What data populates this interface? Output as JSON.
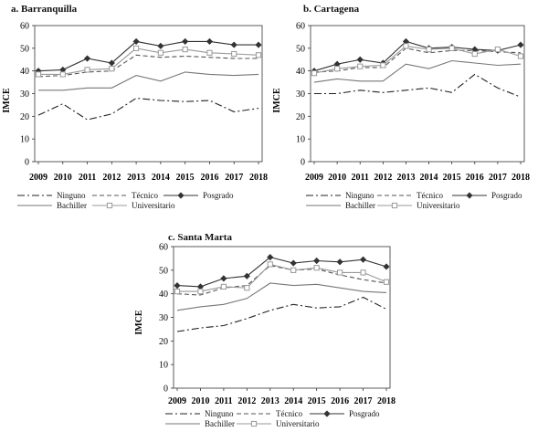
{
  "chart_data": [
    {
      "type": "line",
      "panel_title": "a. Barranquilla",
      "ylabel": "IMCE",
      "ylim": [
        0,
        60
      ],
      "yticks": [
        0,
        10,
        20,
        30,
        40,
        50,
        60
      ],
      "x": [
        2009,
        2010,
        2011,
        2012,
        2013,
        2014,
        2015,
        2016,
        2017,
        2018
      ],
      "series": [
        {
          "name": "Ninguno",
          "values": [
            20.5,
            25.5,
            18.5,
            21,
            28,
            27,
            26.5,
            27,
            22,
            23.5
          ]
        },
        {
          "name": "Técnico",
          "values": [
            37.5,
            38,
            39.5,
            40,
            47,
            46,
            46.5,
            46,
            45.5,
            45.5
          ]
        },
        {
          "name": "Posgrado",
          "values": [
            40,
            40.5,
            45.5,
            43.5,
            53,
            51,
            53,
            53,
            51.5,
            51.5
          ]
        },
        {
          "name": "Bachiller",
          "values": [
            31.5,
            31.5,
            32.5,
            32.5,
            38,
            35.5,
            39.5,
            38.5,
            38,
            38.5
          ]
        },
        {
          "name": "Universitario",
          "values": [
            38.5,
            38.5,
            40.5,
            41,
            50,
            48,
            49.5,
            48,
            47.5,
            47
          ]
        }
      ]
    },
    {
      "type": "line",
      "panel_title": "b. Cartagena",
      "ylabel": "IMCE",
      "ylim": [
        0,
        60
      ],
      "yticks": [
        0,
        10,
        20,
        30,
        40,
        50,
        60
      ],
      "x": [
        2009,
        2010,
        2011,
        2012,
        2013,
        2014,
        2015,
        2016,
        2017,
        2018
      ],
      "series": [
        {
          "name": "Ninguno",
          "values": [
            30,
            30,
            31.5,
            30.5,
            31.5,
            32.5,
            30.5,
            38.5,
            32.5,
            28.5
          ]
        },
        {
          "name": "Técnico",
          "values": [
            39.5,
            40,
            41.5,
            41.5,
            50,
            48,
            49,
            49,
            48.5,
            48
          ]
        },
        {
          "name": "Posgrado",
          "values": [
            40,
            43,
            45,
            43.5,
            53,
            50,
            50.5,
            49.5,
            49,
            51.5
          ]
        },
        {
          "name": "Bachiller",
          "values": [
            35,
            36.5,
            35.5,
            35.5,
            43,
            41,
            44.5,
            43.5,
            42.5,
            43
          ]
        },
        {
          "name": "Universitario",
          "values": [
            39,
            41,
            42,
            42.5,
            51,
            49.5,
            50,
            47.5,
            49.5,
            46.5
          ]
        }
      ]
    },
    {
      "type": "line",
      "panel_title": "c. Santa Marta",
      "ylabel": "IMCE",
      "ylim": [
        0,
        60
      ],
      "yticks": [
        0,
        10,
        20,
        30,
        40,
        50,
        60
      ],
      "x": [
        2009,
        2010,
        2011,
        2012,
        2013,
        2014,
        2015,
        2016,
        2017,
        2018
      ],
      "series": [
        {
          "name": "Ninguno",
          "values": [
            24,
            25.5,
            26.5,
            29.5,
            33,
            35.5,
            34,
            34.5,
            38.5,
            33.5
          ]
        },
        {
          "name": "Técnico",
          "values": [
            40,
            39.5,
            42.5,
            43.5,
            52,
            50,
            50.5,
            48,
            46,
            44.5
          ]
        },
        {
          "name": "Posgrado",
          "values": [
            43.5,
            43,
            46.5,
            47.5,
            55.5,
            53,
            54,
            53.5,
            54.5,
            51.5
          ]
        },
        {
          "name": "Bachiller",
          "values": [
            33,
            34.5,
            35.5,
            38,
            44.5,
            43.5,
            44,
            42.5,
            41,
            40.5
          ]
        },
        {
          "name": "Universitario",
          "values": [
            41,
            41,
            43,
            42.5,
            52.5,
            50,
            51,
            49,
            49,
            45
          ]
        }
      ]
    }
  ],
  "styles": {
    "Ninguno": {
      "color": "#222222",
      "dash": "8,3,2,3",
      "marker": "none"
    },
    "Técnico": {
      "color": "#555555",
      "dash": "5,3",
      "marker": "none"
    },
    "Posgrado": {
      "color": "#333333",
      "dash": "",
      "marker": "diamond"
    },
    "Bachiller": {
      "color": "#777777",
      "dash": "",
      "marker": "none"
    },
    "Universitario": {
      "color": "#999999",
      "dash": "",
      "marker": "square"
    }
  }
}
